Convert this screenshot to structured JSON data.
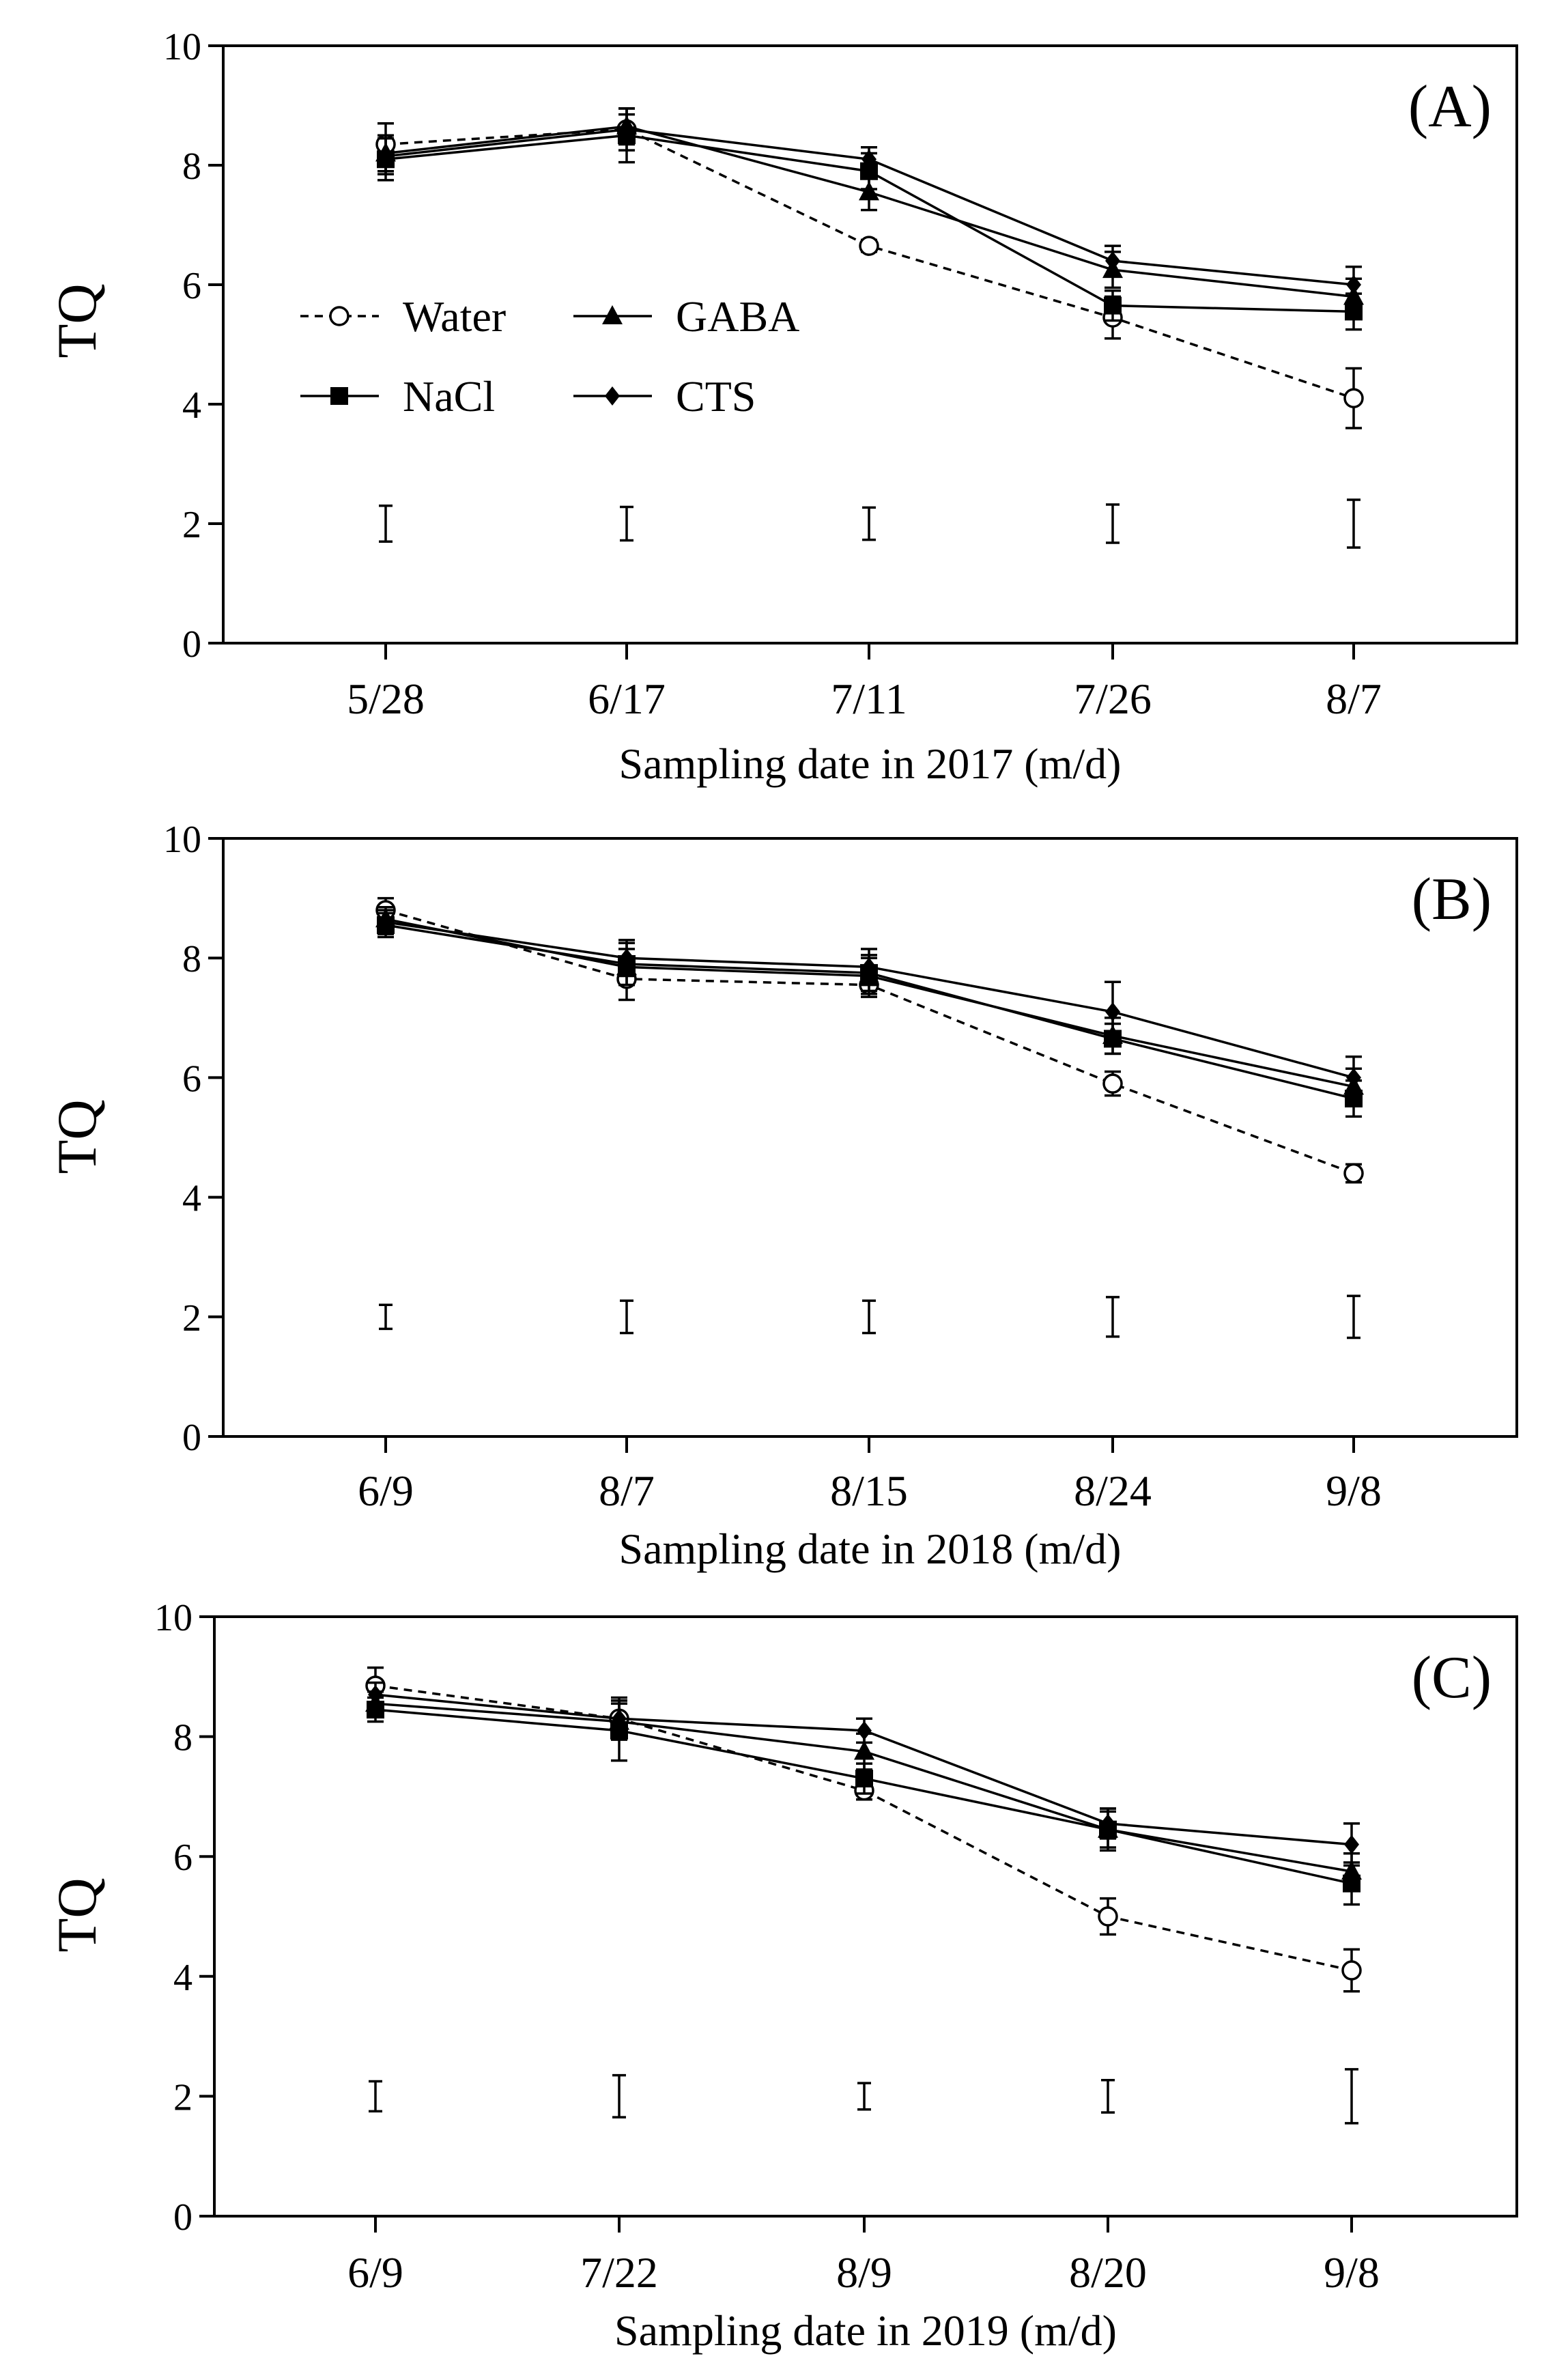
{
  "chart_data": [
    {
      "type": "line",
      "panel_label": "(A)",
      "xlabel": "Sampling date in 2017 (m/d)",
      "ylabel": "TQ",
      "categories": [
        "5/28",
        "6/17",
        "7/11",
        "7/26",
        "8/7"
      ],
      "ylim": [
        0,
        10
      ],
      "yticks": [
        "0",
        "2",
        "4",
        "6",
        "8",
        "10"
      ],
      "grid": false,
      "legend": {
        "location": "center-left",
        "columns": 2,
        "entries": [
          "Water",
          "GABA",
          "NaCl",
          "CTS"
        ]
      },
      "series": [
        {
          "name": "Water",
          "marker": "open-circle",
          "dashed": true,
          "values": [
            8.35,
            8.6,
            6.65,
            5.45,
            4.1
          ],
          "errors": [
            0.35,
            0.25,
            0.1,
            0.35,
            0.5
          ]
        },
        {
          "name": "NaCl",
          "marker": "square",
          "dashed": false,
          "values": [
            8.1,
            8.5,
            7.9,
            5.65,
            5.55
          ],
          "errors": [
            0.35,
            0.45,
            0.3,
            0.25,
            0.3
          ]
        },
        {
          "name": "GABA",
          "marker": "triangle",
          "dashed": false,
          "values": [
            8.2,
            8.65,
            7.55,
            6.25,
            5.8
          ],
          "errors": [
            0.3,
            0.3,
            0.3,
            0.3,
            0.3
          ]
        },
        {
          "name": "CTS",
          "marker": "diamond",
          "dashed": false,
          "values": [
            8.15,
            8.6,
            8.1,
            6.4,
            6.0
          ],
          "errors": [
            0.3,
            0.35,
            0.2,
            0.25,
            0.3
          ]
        }
      ],
      "lsd_bars": [
        {
          "center": 2.0,
          "half": 0.3
        },
        {
          "center": 2.0,
          "half": 0.28
        },
        {
          "center": 2.0,
          "half": 0.27
        },
        {
          "center": 2.0,
          "half": 0.32
        },
        {
          "center": 2.0,
          "half": 0.4
        }
      ]
    },
    {
      "type": "line",
      "panel_label": "(B)",
      "xlabel": "Sampling date in 2018 (m/d)",
      "ylabel": "TQ",
      "categories": [
        "6/9",
        "8/7",
        "8/15",
        "8/24",
        "9/8"
      ],
      "ylim": [
        0,
        10
      ],
      "yticks": [
        "0",
        "2",
        "4",
        "6",
        "8",
        "10"
      ],
      "grid": false,
      "series": [
        {
          "name": "Water",
          "marker": "open-circle",
          "dashed": true,
          "values": [
            8.8,
            7.65,
            7.55,
            5.9,
            4.4
          ],
          "errors": [
            0.2,
            0.35,
            0.2,
            0.2,
            0.15
          ]
        },
        {
          "name": "NaCl",
          "marker": "square",
          "dashed": false,
          "values": [
            8.55,
            7.9,
            7.75,
            6.65,
            5.65
          ],
          "errors": [
            0.2,
            0.35,
            0.3,
            0.25,
            0.3
          ]
        },
        {
          "name": "GABA",
          "marker": "triangle",
          "dashed": false,
          "values": [
            8.65,
            7.85,
            7.7,
            6.7,
            5.85
          ],
          "errors": [
            0.2,
            0.3,
            0.3,
            0.3,
            0.3
          ]
        },
        {
          "name": "CTS",
          "marker": "diamond",
          "dashed": false,
          "values": [
            8.6,
            8.0,
            7.85,
            7.1,
            6.0
          ],
          "errors": [
            0.2,
            0.3,
            0.3,
            0.5,
            0.35
          ]
        }
      ],
      "lsd_bars": [
        {
          "center": 2.0,
          "half": 0.2
        },
        {
          "center": 2.0,
          "half": 0.27
        },
        {
          "center": 2.0,
          "half": 0.27
        },
        {
          "center": 2.0,
          "half": 0.33
        },
        {
          "center": 2.0,
          "half": 0.35
        }
      ]
    },
    {
      "type": "line",
      "panel_label": "(C)",
      "xlabel": "Sampling date in 2019 (m/d)",
      "ylabel": "TQ",
      "categories": [
        "6/9",
        "7/22",
        "8/9",
        "8/20",
        "9/8"
      ],
      "ylim": [
        0,
        10
      ],
      "yticks": [
        "0",
        "2",
        "4",
        "6",
        "8",
        "10"
      ],
      "grid": false,
      "series": [
        {
          "name": "Water",
          "marker": "open-circle",
          "dashed": true,
          "values": [
            8.85,
            8.3,
            7.1,
            5.0,
            4.1
          ],
          "errors": [
            0.3,
            0.3,
            0.15,
            0.3,
            0.35
          ]
        },
        {
          "name": "NaCl",
          "marker": "square",
          "dashed": false,
          "values": [
            8.45,
            8.1,
            7.3,
            6.45,
            5.55
          ],
          "errors": [
            0.2,
            0.5,
            0.25,
            0.35,
            0.35
          ]
        },
        {
          "name": "GABA",
          "marker": "triangle",
          "dashed": false,
          "values": [
            8.55,
            8.25,
            7.75,
            6.45,
            5.75
          ],
          "errors": [
            0.2,
            0.3,
            0.3,
            0.3,
            0.3
          ]
        },
        {
          "name": "CTS",
          "marker": "diamond",
          "dashed": false,
          "values": [
            8.7,
            8.3,
            8.1,
            6.55,
            6.2
          ],
          "errors": [
            0.2,
            0.35,
            0.2,
            0.25,
            0.35
          ]
        }
      ],
      "lsd_bars": [
        {
          "center": 2.0,
          "half": 0.25
        },
        {
          "center": 2.0,
          "half": 0.35
        },
        {
          "center": 2.0,
          "half": 0.22
        },
        {
          "center": 2.0,
          "half": 0.27
        },
        {
          "center": 2.0,
          "half": 0.45
        }
      ]
    }
  ]
}
